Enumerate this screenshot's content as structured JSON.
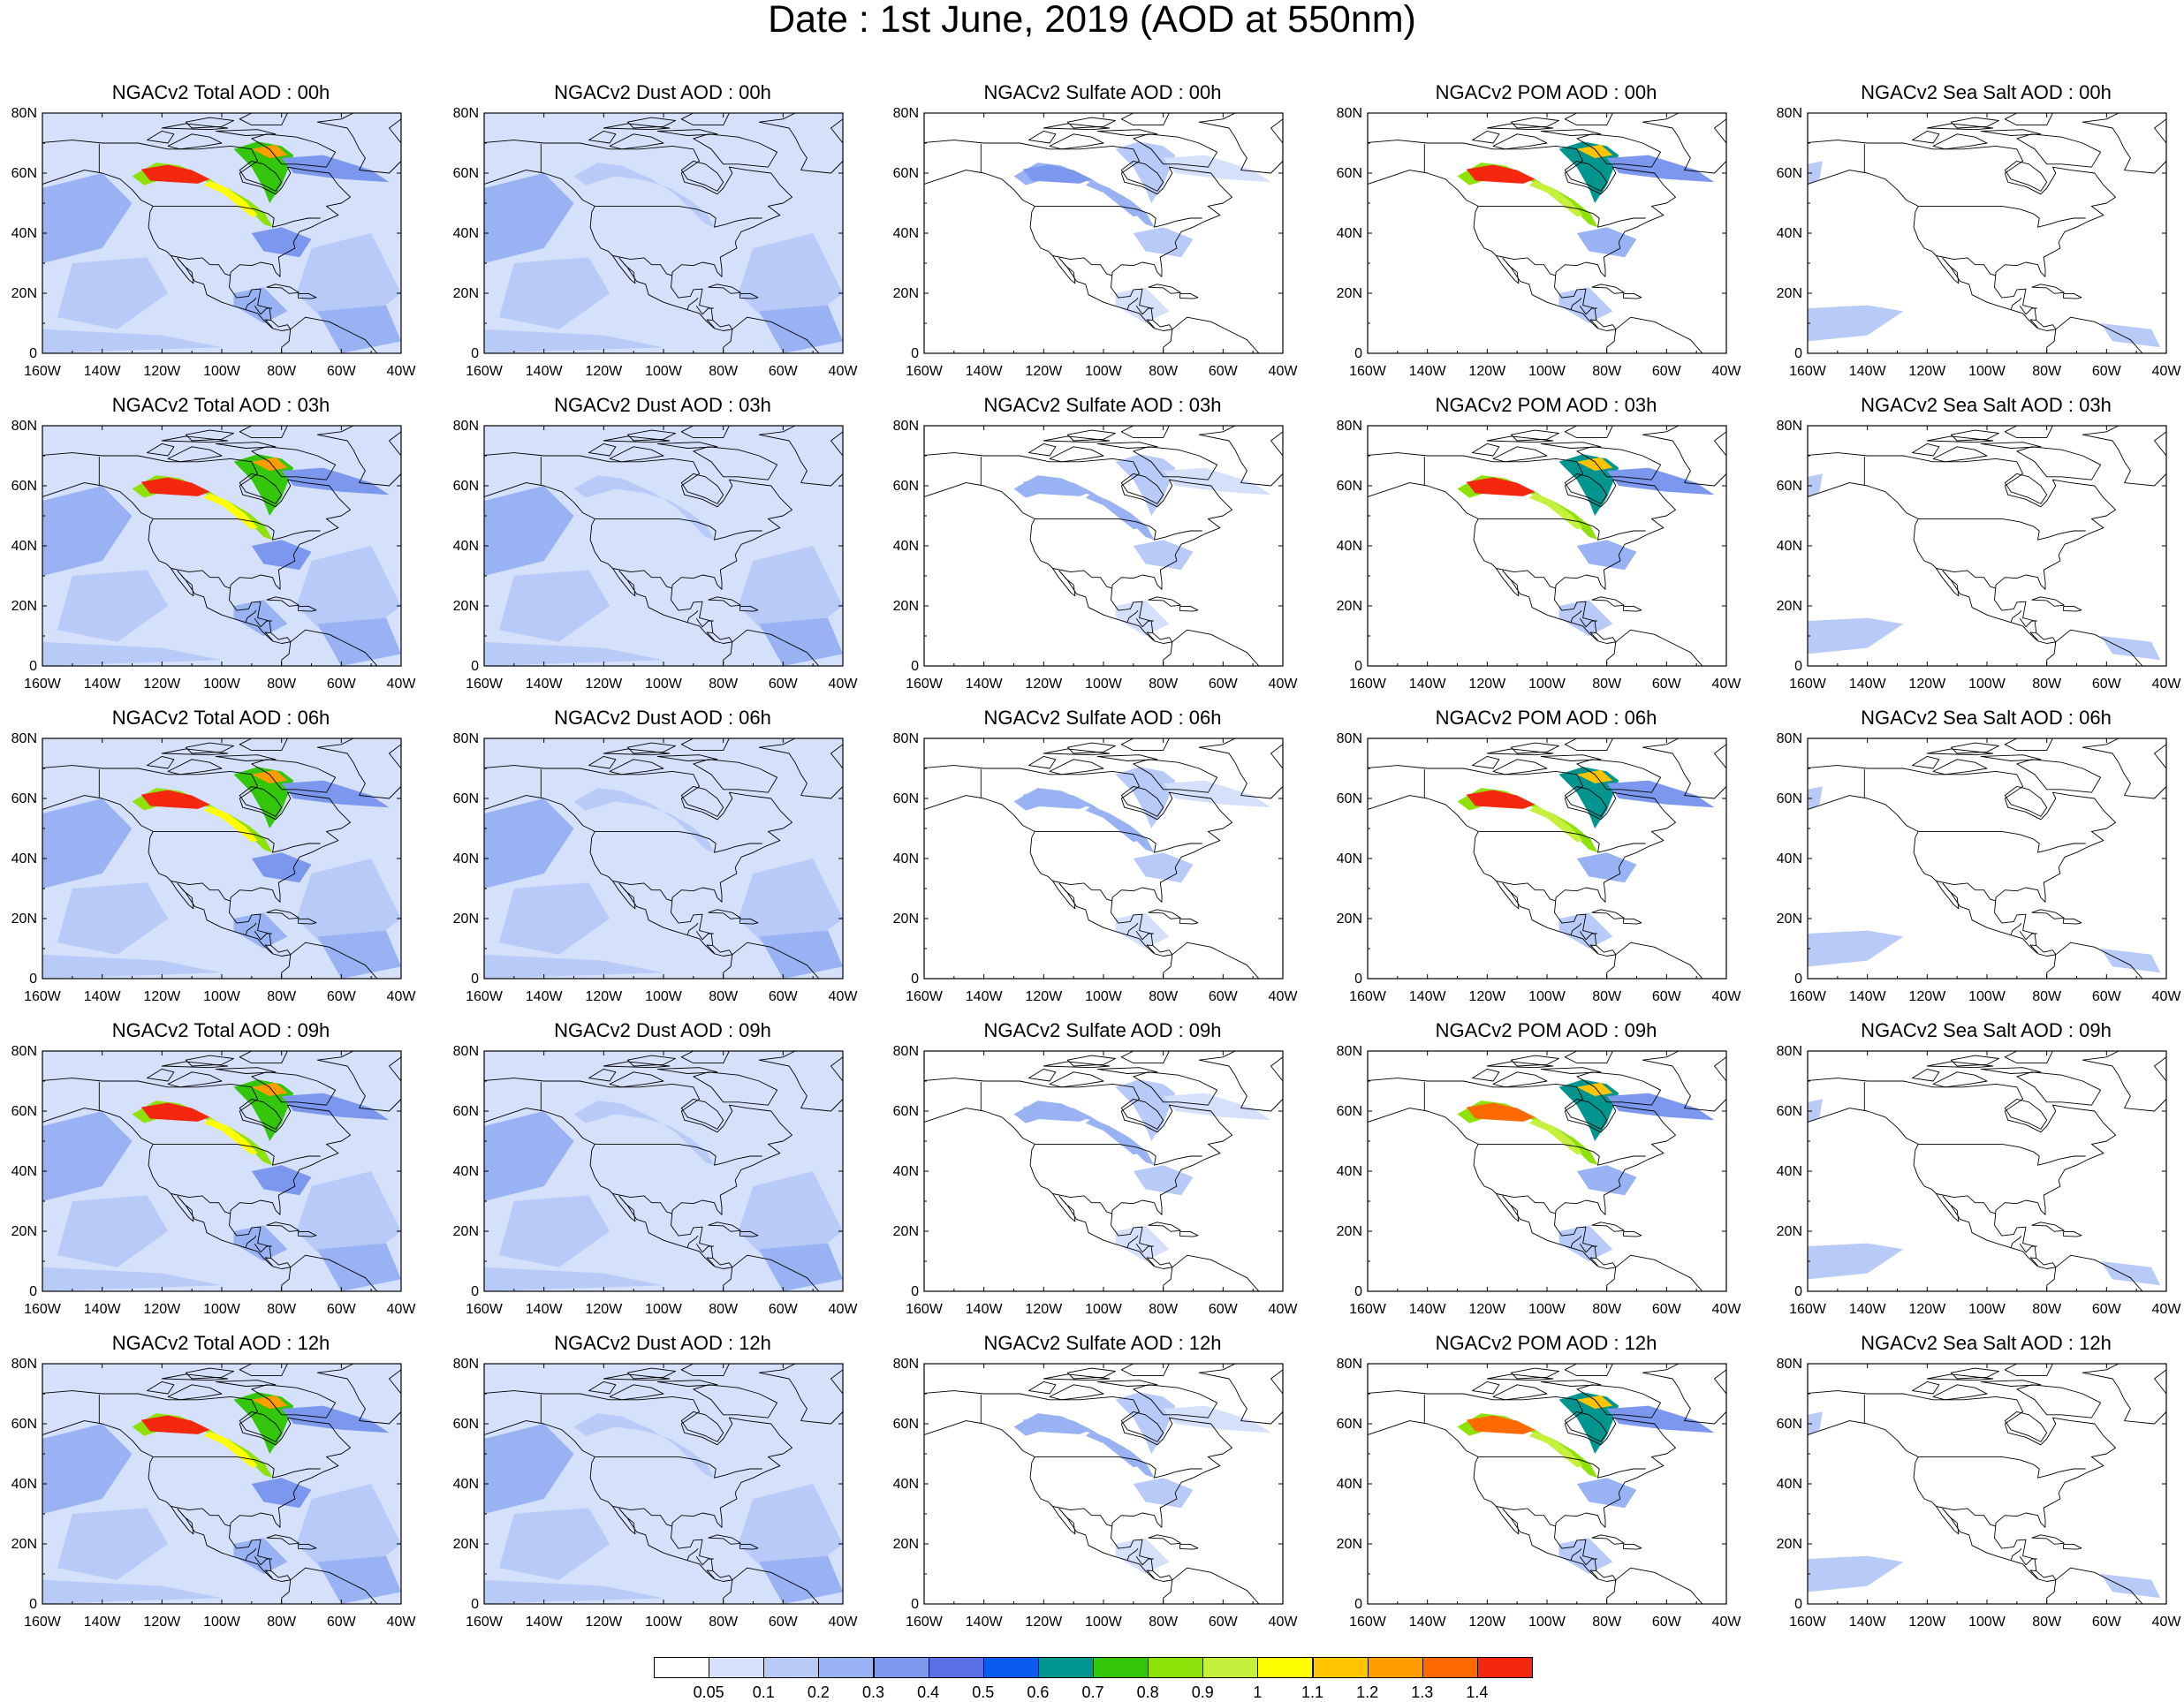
{
  "title": "Date : 1st June, 2019 (AOD at 550nm)",
  "axes": {
    "lat_labels": [
      "0",
      "20N",
      "40N",
      "60N",
      "80N"
    ],
    "lon_labels": [
      "160W",
      "140W",
      "120W",
      "100W",
      "80W",
      "60W",
      "40W"
    ],
    "lon_range_deg": [
      -160,
      -40
    ],
    "lat_range_deg": [
      0,
      80
    ]
  },
  "panels": [
    {
      "title": "NGACv2 Total AOD : 00h",
      "var": "total",
      "hour": 0
    },
    {
      "title": "NGACv2 Dust AOD : 00h",
      "var": "dust",
      "hour": 0
    },
    {
      "title": "NGACv2 Sulfate AOD : 00h",
      "var": "sulfate",
      "hour": 0
    },
    {
      "title": "NGACv2 POM AOD : 00h",
      "var": "pom",
      "hour": 0
    },
    {
      "title": "NGACv2 Sea Salt AOD : 00h",
      "var": "seasalt",
      "hour": 0
    },
    {
      "title": "NGACv2 Total AOD : 03h",
      "var": "total",
      "hour": 3
    },
    {
      "title": "NGACv2 Dust AOD : 03h",
      "var": "dust",
      "hour": 3
    },
    {
      "title": "NGACv2 Sulfate AOD : 03h",
      "var": "sulfate",
      "hour": 3
    },
    {
      "title": "NGACv2 POM AOD : 03h",
      "var": "pom",
      "hour": 3
    },
    {
      "title": "NGACv2 Sea Salt AOD : 03h",
      "var": "seasalt",
      "hour": 3
    },
    {
      "title": "NGACv2 Total AOD : 06h",
      "var": "total",
      "hour": 6
    },
    {
      "title": "NGACv2 Dust AOD : 06h",
      "var": "dust",
      "hour": 6
    },
    {
      "title": "NGACv2 Sulfate AOD : 06h",
      "var": "sulfate",
      "hour": 6
    },
    {
      "title": "NGACv2 POM AOD : 06h",
      "var": "pom",
      "hour": 6
    },
    {
      "title": "NGACv2 Sea Salt AOD : 06h",
      "var": "seasalt",
      "hour": 6
    },
    {
      "title": "NGACv2 Total AOD : 09h",
      "var": "total",
      "hour": 9
    },
    {
      "title": "NGACv2 Dust AOD : 09h",
      "var": "dust",
      "hour": 9
    },
    {
      "title": "NGACv2 Sulfate AOD : 09h",
      "var": "sulfate",
      "hour": 9
    },
    {
      "title": "NGACv2 POM AOD : 09h",
      "var": "pom",
      "hour": 9
    },
    {
      "title": "NGACv2 Sea Salt  AOD : 09h",
      "var": "seasalt",
      "hour": 9
    },
    {
      "title": "NGACv2 Total AOD  : 12h",
      "var": "total",
      "hour": 12
    },
    {
      "title": "NGACv2 Dust AOD : 12h",
      "var": "dust",
      "hour": 12
    },
    {
      "title": "NGACv2 Sulfate AOD : 12h",
      "var": "sulfate",
      "hour": 12
    },
    {
      "title": "NGACv2 POM  AOD : 12h",
      "var": "pom",
      "hour": 12
    },
    {
      "title": "NGACv2 Sea Salt  AOD : 12h",
      "var": "seasalt",
      "hour": 12
    }
  ],
  "colorbar": {
    "labels": [
      "0.05",
      "0.1",
      "0.2",
      "0.3",
      "0.4",
      "0.5",
      "0.6",
      "0.7",
      "0.8",
      "0.9",
      "1",
      "1.1",
      "1.2",
      "1.3",
      "1.4"
    ],
    "colors": [
      "#ffffff",
      "#d5e0fa",
      "#b8caf7",
      "#98b2f3",
      "#7b97ee",
      "#5a70e6",
      "#0a5cf0",
      "#00968f",
      "#33c60b",
      "#8ee20a",
      "#c5f03c",
      "#ffff00",
      "#ffc400",
      "#ff9c00",
      "#ff6a00",
      "#f5270f"
    ]
  },
  "colors": {
    "land_outline": "#000000",
    "background": "#ffffff"
  }
}
